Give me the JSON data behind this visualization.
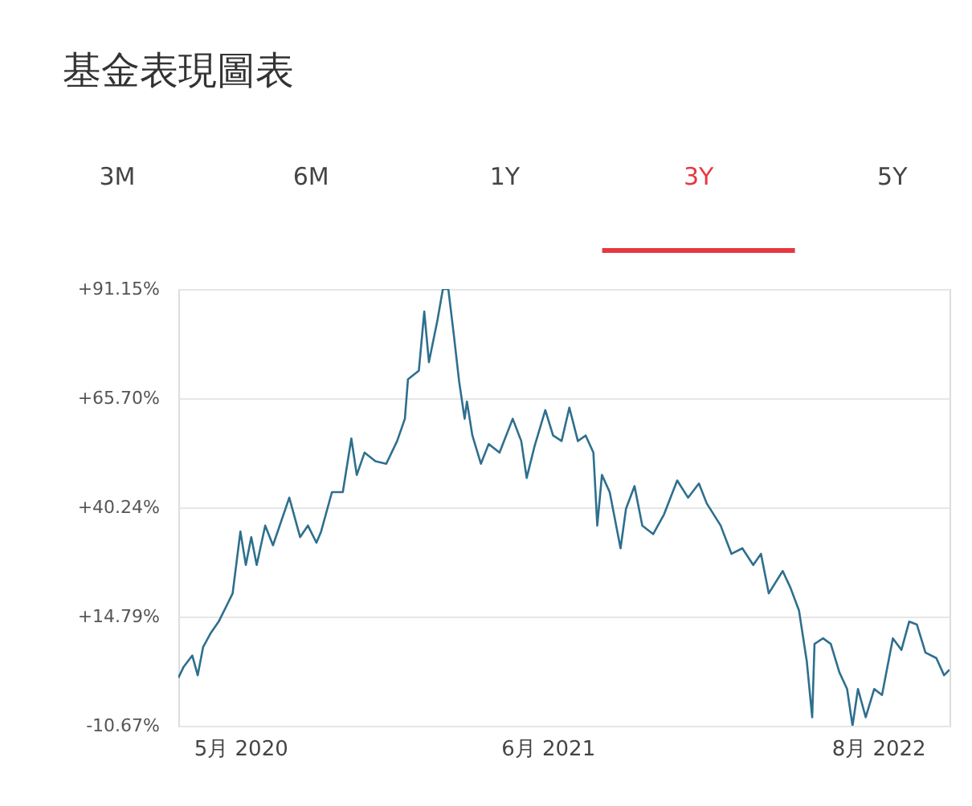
{
  "chart_data": {
    "type": "line",
    "title": "基金表現圖表",
    "annotations": [
      "3M",
      "6M",
      "1Y",
      "3Y",
      "5Y"
    ],
    "x": [
      "2020-02-11",
      "2020-02-18",
      "2020-02-29",
      "2020-03-07",
      "2020-03-14",
      "2020-03-24",
      "2020-04-03",
      "2020-04-14",
      "2020-04-21",
      "2020-05-01",
      "2020-05-08",
      "2020-05-15",
      "2020-05-22",
      "2020-06-02",
      "2020-06-12",
      "2020-07-03",
      "2020-07-17",
      "2020-07-27",
      "2020-08-07",
      "2020-08-13",
      "2020-08-27",
      "2020-09-10",
      "2020-09-21",
      "2020-09-28",
      "2020-10-08",
      "2020-10-22",
      "2020-11-05",
      "2020-11-19",
      "2020-11-29",
      "2020-12-03",
      "2020-12-17",
      "2020-12-24",
      "2020-12-30",
      "2021-01-10",
      "2021-01-17",
      "2021-01-24",
      "2021-01-31",
      "2021-02-07",
      "2021-02-14",
      "2021-02-17",
      "2021-02-24",
      "2021-03-07",
      "2021-03-17",
      "2021-03-31",
      "2021-04-17",
      "2021-04-28",
      "2021-05-05",
      "2021-05-15",
      "2021-05-29",
      "2021-06-08",
      "2021-06-19",
      "2021-06-29",
      "2021-07-10",
      "2021-07-20",
      "2021-07-30",
      "2021-08-04",
      "2021-08-10",
      "2021-08-20",
      "2021-09-03",
      "2021-09-10",
      "2021-09-21",
      "2021-10-01",
      "2021-10-15",
      "2021-10-29",
      "2021-11-15",
      "2021-11-29",
      "2021-12-13",
      "2021-12-23",
      "2022-01-10",
      "2022-01-24",
      "2022-02-07",
      "2022-02-21",
      "2022-03-03",
      "2022-03-13",
      "2022-03-31",
      "2022-04-10",
      "2022-04-21",
      "2022-05-01",
      "2022-05-08",
      "2022-05-11",
      "2022-05-22",
      "2022-06-01",
      "2022-06-12",
      "2022-06-22",
      "2022-06-29",
      "2022-07-06",
      "2022-07-16",
      "2022-07-27",
      "2022-08-06",
      "2022-08-20",
      "2022-08-31",
      "2022-09-10",
      "2022-09-20",
      "2022-10-01",
      "2022-10-15",
      "2022-10-25",
      "2022-11-01"
    ],
    "series": [
      {
        "color": "#2e6f8e",
        "values": [
          0.5,
          3.1,
          5.7,
          1.1,
          7.7,
          11.0,
          13.6,
          17.6,
          20.2,
          34.6,
          26.8,
          33.3,
          26.8,
          36.0,
          31.4,
          42.5,
          33.3,
          36.0,
          32.0,
          34.6,
          43.8,
          43.8,
          56.3,
          47.8,
          53.0,
          51.0,
          50.4,
          55.7,
          60.9,
          70.1,
          72.1,
          85.9,
          74.1,
          83.9,
          91.15,
          91.15,
          80.6,
          69.5,
          60.9,
          64.9,
          57.0,
          50.4,
          55.0,
          53.0,
          60.9,
          55.7,
          47.1,
          54.4,
          62.9,
          57.0,
          55.7,
          63.5,
          55.7,
          57.0,
          53.0,
          36.0,
          47.8,
          43.8,
          30.7,
          39.9,
          45.2,
          36.0,
          34.0,
          38.6,
          46.5,
          42.5,
          45.8,
          41.2,
          36.0,
          29.4,
          30.7,
          26.8,
          29.4,
          20.2,
          25.4,
          21.5,
          16.2,
          4.4,
          -8.7,
          8.4,
          9.7,
          8.4,
          1.8,
          -2.1,
          -10.67,
          -2.1,
          -8.7,
          -2.1,
          -3.5,
          9.7,
          7.0,
          13.6,
          12.9,
          6.4,
          5.1,
          1.1,
          2.4
        ]
      }
    ],
    "xlim": [
      "2020-02-11",
      "2022-11-01"
    ],
    "xticks": [
      {
        "value": "2020-05-01",
        "label": "5月 2020"
      },
      {
        "value": "2021-06-01",
        "label": "6月 2021"
      },
      {
        "value": "2022-08-01",
        "label": "8月 2022"
      }
    ],
    "ylim": [
      -10.67,
      91.15
    ],
    "yticks": [
      {
        "value": -10.67,
        "label": "-10.67%"
      },
      {
        "value": 14.79,
        "label": "+14.79%"
      },
      {
        "value": 40.24,
        "label": "+40.24%"
      },
      {
        "value": 65.7,
        "label": "+65.70%"
      },
      {
        "value": 91.15,
        "label": "+91.15%"
      }
    ],
    "grid": "y",
    "legend": false
  }
}
